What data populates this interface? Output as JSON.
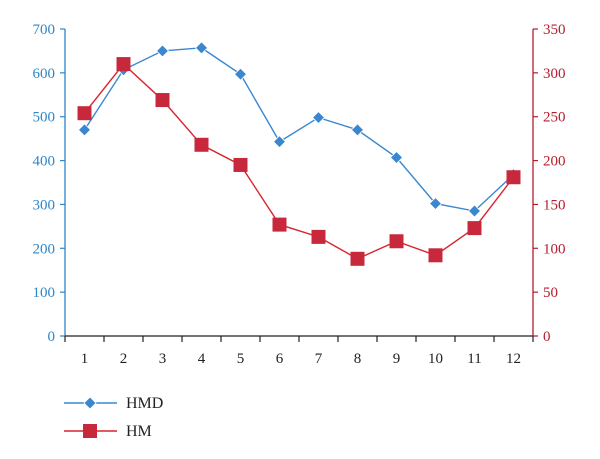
{
  "chart_data": {
    "type": "line",
    "categories": [
      "1",
      "2",
      "3",
      "4",
      "5",
      "6",
      "7",
      "8",
      "9",
      "10",
      "11",
      "12"
    ],
    "series": [
      {
        "name": "HMD",
        "axis": "left",
        "color": "#3a87d0",
        "marker": "diamond",
        "values": [
          470,
          607,
          650,
          657,
          597,
          443,
          498,
          470,
          407,
          302,
          285,
          368
        ]
      },
      {
        "name": "HM",
        "axis": "right",
        "color": "#c8283c",
        "line_color": "#d9232f",
        "marker": "square",
        "values": [
          254,
          310,
          269,
          218,
          195,
          127,
          113,
          88,
          108,
          92,
          123,
          181
        ]
      }
    ],
    "y_left": {
      "ticks": [
        "0",
        "100",
        "200",
        "300",
        "400",
        "500",
        "600",
        "700"
      ],
      "ylim": [
        0,
        700
      ],
      "color": "#2f86c8"
    },
    "y_right": {
      "ticks": [
        "0",
        "50",
        "100",
        "150",
        "200",
        "250",
        "300",
        "350"
      ],
      "ylim": [
        0,
        350
      ],
      "color": "#b71c2e"
    },
    "grid": false,
    "legend": {
      "placement": "bottom-left",
      "entries": [
        "HMD",
        "HM"
      ]
    }
  }
}
